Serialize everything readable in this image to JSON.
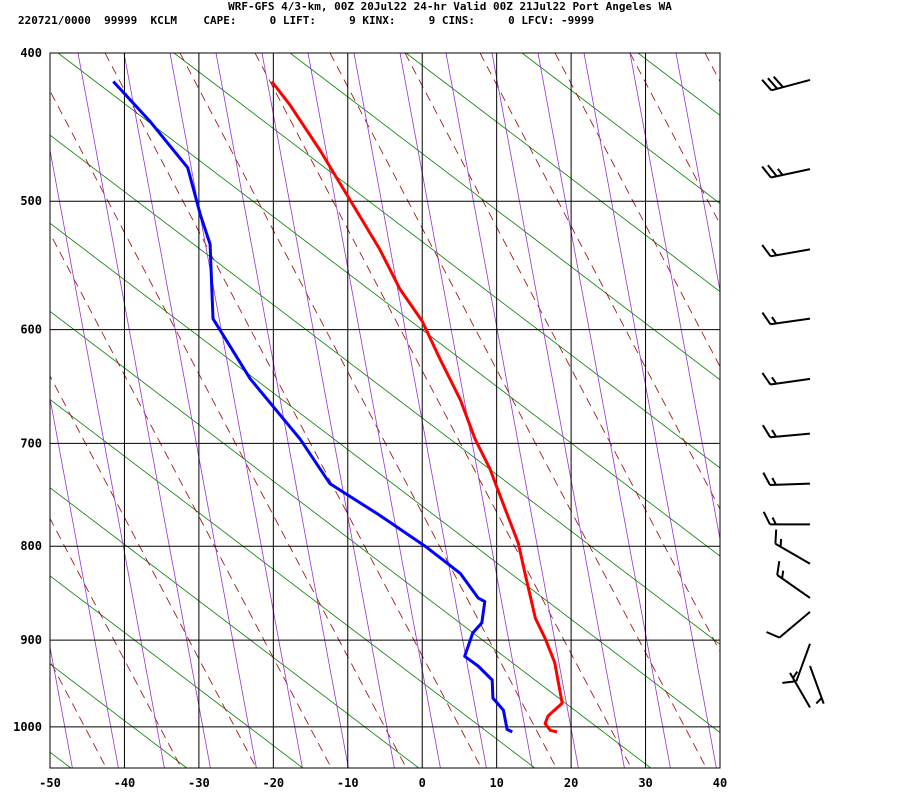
{
  "chart_data": {
    "type": "sounding",
    "title": "WRF-GFS 4/3-km, 00Z 20Jul22 24-hr Valid 00Z 21Jul22 Port Angeles WA",
    "subtitle": "220721/0000  99999  KCLM    CAPE:     0 LIFT:     9 KINX:     9 CINS:     0 LFCV: -9999",
    "xlim": [
      -50,
      40
    ],
    "xticks": [
      -50,
      -40,
      -30,
      -20,
      -10,
      0,
      10,
      20,
      30,
      40
    ],
    "ylim": [
      400,
      1050
    ],
    "yticks": [
      400,
      500,
      600,
      700,
      800,
      900,
      1000
    ],
    "grid": true,
    "series": [
      {
        "color": "#ff0000",
        "values": [
          418,
          433,
          464,
          499,
          536,
          567,
          593,
          625,
          660,
          696,
          724,
          762,
          797,
          828,
          876,
          898,
          925,
          972,
          987,
          996,
          1004,
          1006
        ],
        "x": [
          -20.2,
          -17.8,
          -13.7,
          -9.7,
          -5.7,
          -3.0,
          0.0,
          2.4,
          5.1,
          7.1,
          9.1,
          11.1,
          12.9,
          13.8,
          15.2,
          16.5,
          17.8,
          18.8,
          16.9,
          16.5,
          17.2,
          18.1
        ]
      },
      {
        "color": "#0000ff",
        "values": [
          418,
          444,
          476,
          510,
          532,
          591,
          642,
          696,
          738,
          768,
          800,
          828,
          854,
          858,
          881,
          892,
          918,
          929,
          945,
          966,
          980,
          1003,
          1006
        ],
        "x": [
          -41.5,
          -36.6,
          -31.5,
          -29.8,
          -28.5,
          -28.1,
          -23.1,
          -16.4,
          -12.4,
          -5.9,
          0.4,
          5.1,
          7.5,
          8.4,
          8.0,
          6.8,
          5.7,
          7.5,
          9.4,
          9.5,
          10.9,
          11.4,
          12.1
        ]
      }
    ],
    "winds": {
      "pressure": [
        417,
        477,
        536,
        591,
        642,
        691,
        738,
        778,
        818,
        854,
        869,
        904,
        929,
        977
      ],
      "direction": [
        255,
        258,
        260,
        262,
        262,
        265,
        268,
        270,
        300,
        305,
        230,
        200,
        160,
        330
      ],
      "speed": [
        30,
        25,
        15,
        15,
        15,
        15,
        15,
        15,
        15,
        15,
        10,
        10,
        5,
        5
      ]
    }
  }
}
